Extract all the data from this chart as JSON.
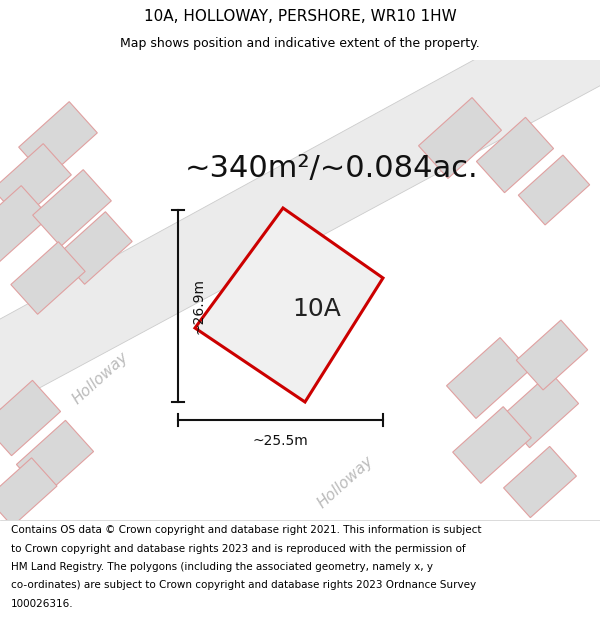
{
  "title": "10A, HOLLOWAY, PERSHORE, WR10 1HW",
  "subtitle": "Map shows position and indicative extent of the property.",
  "area_text": "~340m²/~0.084ac.",
  "label_10A": "10A",
  "dim_horiz": "~25.5m",
  "dim_vert": "~26.9m",
  "street_label_upper": "Holloway",
  "street_label_lower": "Holloway",
  "footer_lines": [
    "Contains OS data © Crown copyright and database right 2021. This information is subject",
    "to Crown copyright and database rights 2023 and is reproduced with the permission of",
    "HM Land Registry. The polygons (including the associated geometry, namely x, y",
    "co-ordinates) are subject to Crown copyright and database rights 2023 Ordnance Survey",
    "100026316."
  ],
  "bg_color": "#ffffff",
  "road_fill": "#ebebeb",
  "bldg_fill": "#d8d8d8",
  "bldg_stroke": "#e0a0a0",
  "plot_stroke": "#cc0000",
  "plot_fill": "#f0f0f0",
  "inner_fill": "#d4d4d4",
  "dim_color": "#111111",
  "street_color": "#bbbbbb",
  "title_fontsize": 11,
  "subtitle_fontsize": 9,
  "area_fontsize": 22,
  "label_fontsize": 18,
  "footer_fontsize": 7.5,
  "street_fontsize": 11,
  "dim_fontsize": 10
}
